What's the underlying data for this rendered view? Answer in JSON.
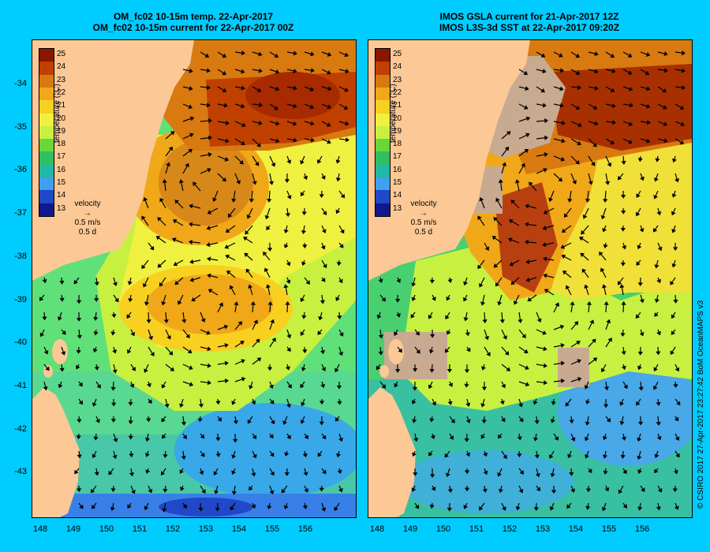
{
  "left_panel": {
    "title_line1": "OM_fc02 10-15m temp. 22-Apr-2017",
    "title_line2": "OM_fc02 10-15m current for 22-Apr-2017 00Z"
  },
  "right_panel": {
    "title_line1": "IMOS GSLA current for 21-Apr-2017 12Z",
    "title_line2": "IMOS L3S-3d SST at 22-Apr-2017 09:20Z"
  },
  "colorbar": {
    "title": "temperature (°C)",
    "levels": [
      "25",
      "24",
      "23",
      "22",
      "21",
      "20",
      "19",
      "18",
      "17",
      "16",
      "15",
      "14",
      "13"
    ],
    "colors": [
      "#8a1500",
      "#c04000",
      "#d87a10",
      "#f0a818",
      "#f8d020",
      "#f0f040",
      "#c8f040",
      "#68d838",
      "#30c060",
      "#20b8a8",
      "#40a0f0",
      "#2048c8",
      "#101890"
    ]
  },
  "velocity_legend": {
    "label": "velocity",
    "speed": "0.5 m/s",
    "duration": "0.5 d"
  },
  "axes": {
    "lat_ticks": [
      "-34",
      "-35",
      "-36",
      "-37",
      "-38",
      "-39",
      "-40",
      "-41",
      "-42",
      "-43"
    ],
    "lon_ticks": [
      "148",
      "149",
      "150",
      "151",
      "152",
      "153",
      "154",
      "155",
      "156"
    ]
  },
  "credit": "© CSIRO 2017   27-Apr-2017 23:27:42 BoM OceanMAPS v3",
  "colors": {
    "background": "#00ccff",
    "land": "#fcc896",
    "cloud": "#c8aa90"
  }
}
